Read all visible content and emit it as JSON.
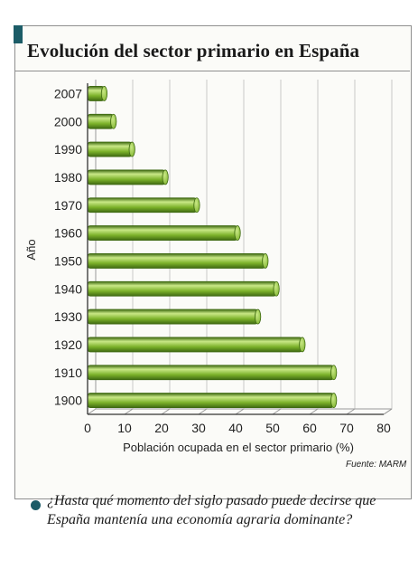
{
  "card": {
    "title": "Evolución del sector primario en España",
    "source": "Fuente: MARM"
  },
  "question": "¿Hasta qué momento del siglo pasado puede decirse que España mantenía una economía agraria dominante?",
  "colors": {
    "accent": "#1c5c67",
    "bar_fill": "#7cb22a",
    "bar_highlight": "#c9e886",
    "bar_shadow": "#3f6a12"
  },
  "chart_data": {
    "type": "bar",
    "orientation": "horizontal",
    "title": "Evolución del sector primario en España",
    "xlabel": "Población ocupada en el sector primario (%)",
    "ylabel": "Año",
    "xlim": [
      0,
      80
    ],
    "xticks": [
      0,
      10,
      20,
      30,
      40,
      50,
      60,
      70,
      80
    ],
    "grid": true,
    "categories": [
      "2007",
      "2000",
      "1990",
      "1980",
      "1970",
      "1960",
      "1950",
      "1940",
      "1930",
      "1920",
      "1910",
      "1900"
    ],
    "values": [
      4.5,
      7,
      12,
      21,
      29.5,
      40.5,
      48,
      51,
      46,
      58,
      66.5,
      66.5
    ]
  }
}
